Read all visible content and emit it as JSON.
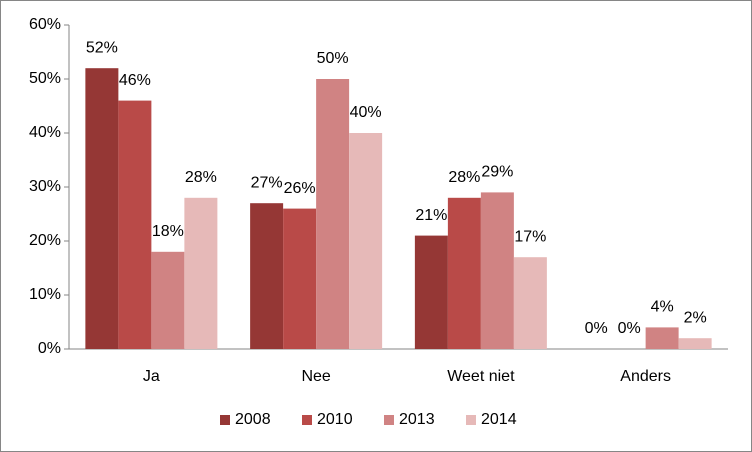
{
  "chart_data": {
    "type": "bar",
    "categories": [
      "Ja",
      "Nee",
      "Weet niet",
      "Anders"
    ],
    "series": [
      {
        "name": "2008",
        "color": "#953735",
        "values": [
          52,
          27,
          21,
          0
        ],
        "value_labels": [
          "52%",
          "27%",
          "21%",
          "0%"
        ]
      },
      {
        "name": "2010",
        "color": "#b94a48",
        "values": [
          46,
          26,
          28,
          0
        ],
        "value_labels": [
          "46%",
          "26%",
          "28%",
          "0%"
        ]
      },
      {
        "name": "2013",
        "color": "#d08383",
        "values": [
          18,
          50,
          29,
          4
        ],
        "value_labels": [
          "18%",
          "50%",
          "29%",
          "4%"
        ]
      },
      {
        "name": "2014",
        "color": "#e6b9b8",
        "values": [
          28,
          40,
          17,
          2
        ],
        "value_labels": [
          "28%",
          "40%",
          "17%",
          "2%"
        ]
      }
    ],
    "ylim": [
      0,
      60
    ],
    "yticks": [
      {
        "value": 0,
        "label": "0%"
      },
      {
        "value": 10,
        "label": "10%"
      },
      {
        "value": 20,
        "label": "20%"
      },
      {
        "value": 30,
        "label": "30%"
      },
      {
        "value": 40,
        "label": "40%"
      },
      {
        "value": 50,
        "label": "50%"
      },
      {
        "value": 60,
        "label": "60%"
      }
    ],
    "legend": "bottom"
  }
}
